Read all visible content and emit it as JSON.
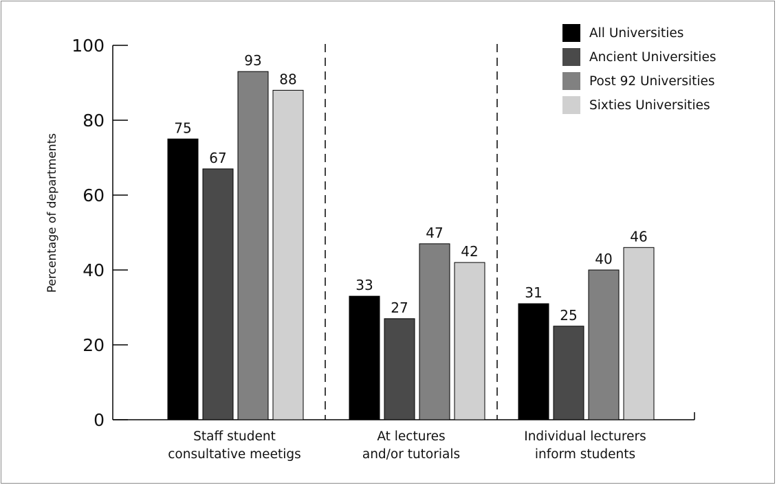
{
  "chart_data": {
    "type": "bar",
    "title": "",
    "xlabel": "",
    "ylabel": "Percentage of departments",
    "ylim": [
      0,
      100
    ],
    "yticks": [
      0,
      20,
      40,
      60,
      80,
      100
    ],
    "grid": false,
    "legend_position": "top-right",
    "categories": [
      [
        "Staff student",
        "consultative meetigs"
      ],
      [
        "At lectures",
        "and/or tutorials"
      ],
      [
        "Individual lecturers",
        "inform students"
      ]
    ],
    "category_separators": "dashed",
    "series": [
      {
        "name": "All Universities",
        "color": "#000000",
        "values": [
          75,
          33,
          31
        ]
      },
      {
        "name": "Ancient Universities",
        "color": "#4a4a4a",
        "values": [
          67,
          27,
          25
        ]
      },
      {
        "name": "Post 92 Universities",
        "color": "#818181",
        "values": [
          93,
          47,
          40
        ]
      },
      {
        "name": "Sixties Universities",
        "color": "#d0d0d0",
        "values": [
          88,
          42,
          46
        ]
      }
    ]
  }
}
